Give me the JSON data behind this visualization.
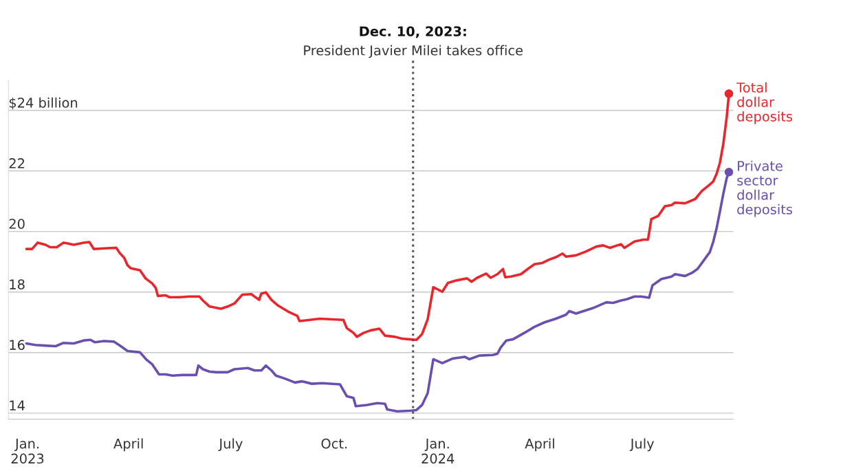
{
  "chart_data": {
    "type": "line",
    "ylim": [
      13.8,
      25
    ],
    "yticks": [
      14,
      16,
      18,
      20,
      22,
      {
        "value": 24,
        "label": "$24 billion"
      }
    ],
    "xlim": [
      "2022-12-15",
      "2024-09-20"
    ],
    "xticks": [
      {
        "value": "2023-01-01",
        "label": "Jan.\n2023"
      },
      {
        "value": "2023-04-01",
        "label": "April"
      },
      {
        "value": "2023-07-01",
        "label": "July"
      },
      {
        "value": "2023-10-01",
        "label": "Oct."
      },
      {
        "value": "2024-01-01",
        "label": "Jan.\n2024"
      },
      {
        "value": "2024-04-01",
        "label": "April"
      },
      {
        "value": "2024-07-01",
        "label": "July"
      }
    ],
    "grid": "y",
    "legend": false,
    "ref_lines": [
      {
        "axis": "x",
        "value": "2023-12-10",
        "label": "Dec. 10, 2023:\nPresident Javier Milei takes office",
        "color": "#555555",
        "line_style": "dotted"
      }
    ],
    "series": [
      {
        "name": "Total dollar deposits",
        "color": "#e8262b",
        "x": [
          "2022-12-31",
          "2023-01-05",
          "2023-01-10",
          "2023-01-17",
          "2023-01-21",
          "2023-01-27",
          "2023-02-02",
          "2023-02-05",
          "2023-02-11",
          "2023-02-20",
          "2023-02-25",
          "2023-03-01",
          "2023-03-10",
          "2023-03-21",
          "2023-03-24",
          "2023-03-28",
          "2023-03-31",
          "2023-04-03",
          "2023-04-11",
          "2023-04-16",
          "2023-04-22",
          "2023-04-25",
          "2023-04-27",
          "2023-05-04",
          "2023-05-07",
          "2023-05-16",
          "2023-05-25",
          "2023-06-03",
          "2023-06-06",
          "2023-06-12",
          "2023-06-22",
          "2023-06-28",
          "2023-07-04",
          "2023-07-11",
          "2023-07-19",
          "2023-07-26",
          "2023-07-28",
          "2023-08-01",
          "2023-08-06",
          "2023-08-12",
          "2023-08-21",
          "2023-08-29",
          "2023-08-31",
          "2023-09-18",
          "2023-10-09",
          "2023-10-12",
          "2023-10-18",
          "2023-10-21",
          "2023-10-27",
          "2023-11-02",
          "2023-11-10",
          "2023-11-15",
          "2023-11-24",
          "2023-11-30",
          "2023-12-06",
          "2023-12-13",
          "2023-12-18",
          "2023-12-23",
          "2023-12-28",
          "2024-01-05",
          "2024-01-10",
          "2024-01-17",
          "2024-01-27",
          "2024-01-31",
          "2024-02-05",
          "2024-02-13",
          "2024-02-17",
          "2024-02-23",
          "2024-02-28",
          "2024-03-01",
          "2024-03-06",
          "2024-03-15",
          "2024-03-21",
          "2024-03-27",
          "2024-04-03",
          "2024-04-09",
          "2024-04-15",
          "2024-04-21",
          "2024-04-24",
          "2024-05-03",
          "2024-05-12",
          "2024-05-21",
          "2024-05-27",
          "2024-06-02",
          "2024-06-12",
          "2024-06-15",
          "2024-06-24",
          "2024-07-02",
          "2024-07-06",
          "2024-07-09",
          "2024-07-15",
          "2024-07-21",
          "2024-07-27",
          "2024-07-30",
          "2024-08-08",
          "2024-08-17",
          "2024-08-23",
          "2024-08-30",
          "2024-09-02",
          "2024-09-05",
          "2024-09-08",
          "2024-09-11",
          "2024-09-14",
          "2024-09-16"
        ],
        "values": [
          19.42,
          19.42,
          19.63,
          19.56,
          19.48,
          19.48,
          19.63,
          19.61,
          19.56,
          19.63,
          19.65,
          19.42,
          19.44,
          19.46,
          19.29,
          19.13,
          18.88,
          18.78,
          18.72,
          18.45,
          18.28,
          18.14,
          17.87,
          17.89,
          17.83,
          17.83,
          17.85,
          17.85,
          17.72,
          17.52,
          17.45,
          17.52,
          17.62,
          17.91,
          17.93,
          17.74,
          17.95,
          17.99,
          17.74,
          17.55,
          17.35,
          17.21,
          17.04,
          17.12,
          17.08,
          16.81,
          16.65,
          16.52,
          16.65,
          16.73,
          16.79,
          16.56,
          16.52,
          16.46,
          16.44,
          16.42,
          16.61,
          17.1,
          18.16,
          18.01,
          18.3,
          18.38,
          18.45,
          18.34,
          18.47,
          18.61,
          18.47,
          18.59,
          18.76,
          18.49,
          18.51,
          18.59,
          18.76,
          18.92,
          18.96,
          19.07,
          19.15,
          19.27,
          19.17,
          19.21,
          19.34,
          19.5,
          19.54,
          19.46,
          19.58,
          19.46,
          19.67,
          19.73,
          19.73,
          20.41,
          20.51,
          20.83,
          20.87,
          20.95,
          20.93,
          21.07,
          21.34,
          21.55,
          21.65,
          21.9,
          22.27,
          22.89,
          23.76,
          24.55
        ]
      },
      {
        "name": "Private sector dollar deposits",
        "color": "#6a4fb0",
        "x": [
          "2022-12-31",
          "2023-01-08",
          "2023-01-17",
          "2023-01-26",
          "2023-02-02",
          "2023-02-11",
          "2023-02-20",
          "2023-02-26",
          "2023-03-02",
          "2023-03-10",
          "2023-03-19",
          "2023-03-25",
          "2023-03-31",
          "2023-04-11",
          "2023-04-17",
          "2023-04-22",
          "2023-04-28",
          "2023-05-04",
          "2023-05-10",
          "2023-05-19",
          "2023-05-31",
          "2023-06-02",
          "2023-06-06",
          "2023-06-12",
          "2023-06-18",
          "2023-06-28",
          "2023-07-04",
          "2023-07-16",
          "2023-07-22",
          "2023-07-28",
          "2023-08-01",
          "2023-08-06",
          "2023-08-10",
          "2023-08-18",
          "2023-08-27",
          "2023-09-02",
          "2023-09-11",
          "2023-09-20",
          "2023-10-06",
          "2023-10-12",
          "2023-10-18",
          "2023-10-20",
          "2023-10-30",
          "2023-11-08",
          "2023-11-15",
          "2023-11-17",
          "2023-11-26",
          "2023-12-08",
          "2023-12-13",
          "2023-12-18",
          "2023-12-23",
          "2023-12-28",
          "2024-01-05",
          "2024-01-14",
          "2024-01-25",
          "2024-01-29",
          "2024-02-07",
          "2024-02-19",
          "2024-02-23",
          "2024-02-26",
          "2024-03-02",
          "2024-03-08",
          "2024-03-18",
          "2024-03-27",
          "2024-04-05",
          "2024-04-15",
          "2024-04-24",
          "2024-04-27",
          "2024-05-03",
          "2024-05-18",
          "2024-05-30",
          "2024-06-05",
          "2024-06-12",
          "2024-06-17",
          "2024-06-24",
          "2024-06-30",
          "2024-07-07",
          "2024-07-10",
          "2024-07-18",
          "2024-07-27",
          "2024-07-30",
          "2024-08-08",
          "2024-08-14",
          "2024-08-19",
          "2024-08-23",
          "2024-08-30",
          "2024-09-02",
          "2024-09-05",
          "2024-09-08",
          "2024-09-11",
          "2024-09-14",
          "2024-09-16"
        ],
        "values": [
          16.3,
          16.25,
          16.23,
          16.21,
          16.32,
          16.3,
          16.4,
          16.42,
          16.34,
          16.38,
          16.36,
          16.21,
          16.05,
          16.01,
          15.76,
          15.61,
          15.28,
          15.28,
          15.24,
          15.26,
          15.26,
          15.57,
          15.45,
          15.37,
          15.35,
          15.35,
          15.45,
          15.49,
          15.41,
          15.41,
          15.57,
          15.41,
          15.24,
          15.14,
          15.01,
          15.05,
          14.97,
          14.99,
          14.95,
          14.56,
          14.5,
          14.23,
          14.27,
          14.33,
          14.31,
          14.12,
          14.06,
          14.08,
          14.1,
          14.27,
          14.66,
          15.78,
          15.65,
          15.8,
          15.86,
          15.78,
          15.9,
          15.92,
          15.96,
          16.17,
          16.4,
          16.44,
          16.65,
          16.85,
          17.0,
          17.12,
          17.25,
          17.37,
          17.29,
          17.47,
          17.66,
          17.64,
          17.72,
          17.76,
          17.85,
          17.85,
          17.81,
          18.22,
          18.43,
          18.51,
          18.59,
          18.53,
          18.63,
          18.76,
          18.96,
          19.32,
          19.65,
          20.1,
          20.66,
          21.24,
          21.76,
          21.96
        ]
      }
    ]
  }
}
